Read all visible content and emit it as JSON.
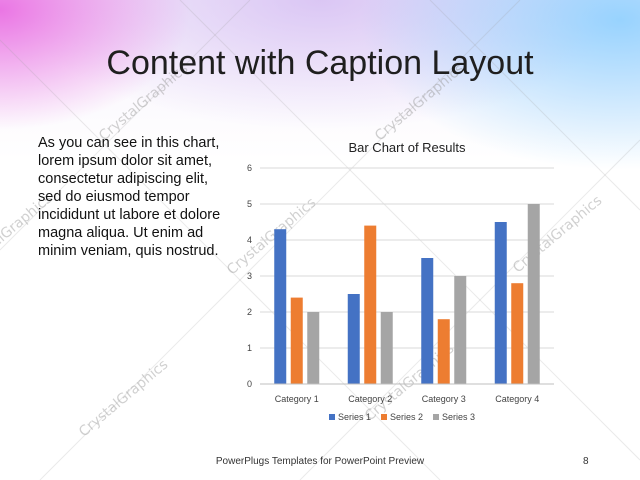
{
  "slide": {
    "title": "Content with Caption Layout",
    "caption": "As you can see in this chart, lorem ipsum dolor sit amet, consectetur adipiscing elit, sed do eiusmod tempor incididunt ut labore et dolore magna aliqua. Ut enim ad minim veniam, quis nostrud.",
    "footer": "PowerPlugs Templates for PowerPoint Preview",
    "page_number": "8",
    "watermark": "CrystalGraphics"
  },
  "chart_data": {
    "type": "bar",
    "title": "Bar Chart of Results",
    "categories": [
      "Category 1",
      "Category 2",
      "Category 3",
      "Category 4"
    ],
    "series": [
      {
        "name": "Series 1",
        "values": [
          4.3,
          2.5,
          3.5,
          4.5
        ],
        "color": "#4472C4"
      },
      {
        "name": "Series 2",
        "values": [
          2.4,
          4.4,
          1.8,
          2.8
        ],
        "color": "#ED7D31"
      },
      {
        "name": "Series 3",
        "values": [
          2,
          2,
          3,
          5
        ],
        "color": "#A5A5A5"
      }
    ],
    "ylim": [
      0,
      6
    ],
    "yticks": [
      "0",
      "1",
      "2",
      "3",
      "4",
      "5",
      "6"
    ],
    "grid": true,
    "legend": "bottom"
  }
}
